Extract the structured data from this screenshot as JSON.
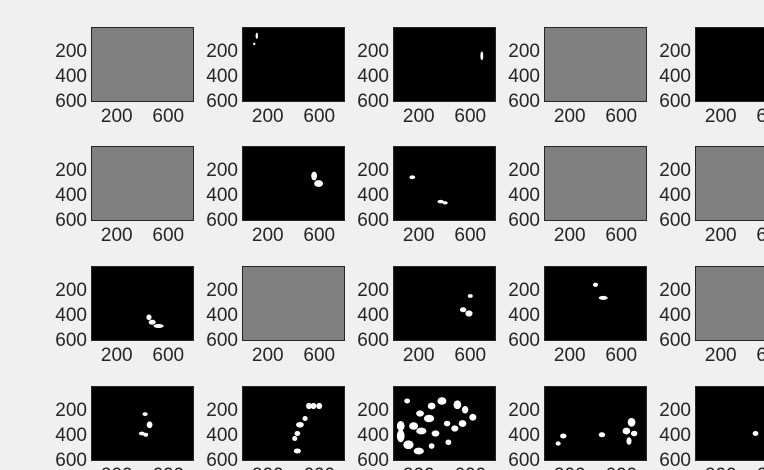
{
  "figure": {
    "background": "#f0f0f0",
    "tick_color": "#262626",
    "image_border_color": "#262626"
  },
  "chart_data": {
    "type": "image-grid",
    "grid": {
      "rows": 4,
      "cols": 5,
      "clipped": "right column and bottom row partially visible"
    },
    "image_size": {
      "width": 800,
      "height": 600
    },
    "xlim": [
      0,
      800
    ],
    "ylim": [
      0,
      600
    ],
    "y_reversed": true,
    "x_ticks": [
      200,
      600
    ],
    "y_ticks": [
      200,
      400,
      600
    ],
    "x_tick_labels": [
      "200",
      "600"
    ],
    "y_tick_labels": [
      "200",
      "400",
      "600"
    ],
    "gray_color": "#808080",
    "blob_color": "#ffffff",
    "panels": [
      {
        "row": 0,
        "col": 0,
        "fill": "gray",
        "blobs": []
      },
      {
        "row": 0,
        "col": 1,
        "fill": "black",
        "blobs": [
          {
            "x": 115,
            "y": 70,
            "w": 18,
            "h": 50
          },
          {
            "x": 95,
            "y": 135,
            "w": 10,
            "h": 18
          }
        ]
      },
      {
        "row": 0,
        "col": 2,
        "fill": "black",
        "blobs": [
          {
            "x": 690,
            "y": 230,
            "w": 22,
            "h": 70
          }
        ]
      },
      {
        "row": 0,
        "col": 3,
        "fill": "gray",
        "blobs": []
      },
      {
        "row": 0,
        "col": 4,
        "fill": "black",
        "blobs": []
      },
      {
        "row": 1,
        "col": 0,
        "fill": "gray",
        "blobs": []
      },
      {
        "row": 1,
        "col": 1,
        "fill": "black",
        "blobs": [
          {
            "x": 560,
            "y": 240,
            "w": 45,
            "h": 70
          },
          {
            "x": 595,
            "y": 300,
            "w": 70,
            "h": 55
          }
        ]
      },
      {
        "row": 1,
        "col": 2,
        "fill": "black",
        "blobs": [
          {
            "x": 150,
            "y": 250,
            "w": 45,
            "h": 30
          },
          {
            "x": 370,
            "y": 445,
            "w": 50,
            "h": 28
          },
          {
            "x": 405,
            "y": 455,
            "w": 40,
            "h": 26
          }
        ]
      },
      {
        "row": 1,
        "col": 3,
        "fill": "gray",
        "blobs": []
      },
      {
        "row": 1,
        "col": 4,
        "fill": "gray",
        "blobs": []
      },
      {
        "row": 2,
        "col": 0,
        "fill": "black",
        "blobs": [
          {
            "x": 450,
            "y": 410,
            "w": 40,
            "h": 45
          },
          {
            "x": 475,
            "y": 450,
            "w": 55,
            "h": 40
          },
          {
            "x": 525,
            "y": 480,
            "w": 80,
            "h": 32
          }
        ]
      },
      {
        "row": 2,
        "col": 1,
        "fill": "gray",
        "blobs": []
      },
      {
        "row": 2,
        "col": 2,
        "fill": "black",
        "blobs": [
          {
            "x": 600,
            "y": 240,
            "w": 40,
            "h": 30
          },
          {
            "x": 545,
            "y": 350,
            "w": 50,
            "h": 40
          },
          {
            "x": 590,
            "y": 380,
            "w": 55,
            "h": 50
          }
        ]
      },
      {
        "row": 2,
        "col": 3,
        "fill": "black",
        "blobs": [
          {
            "x": 400,
            "y": 150,
            "w": 40,
            "h": 35
          },
          {
            "x": 460,
            "y": 255,
            "w": 70,
            "h": 32
          }
        ]
      },
      {
        "row": 2,
        "col": 4,
        "fill": "gray",
        "blobs": []
      },
      {
        "row": 3,
        "col": 0,
        "fill": "black",
        "blobs": [
          {
            "x": 420,
            "y": 225,
            "w": 40,
            "h": 30
          },
          {
            "x": 455,
            "y": 310,
            "w": 45,
            "h": 55
          },
          {
            "x": 395,
            "y": 380,
            "w": 45,
            "h": 30
          },
          {
            "x": 425,
            "y": 390,
            "w": 40,
            "h": 32
          }
        ]
      },
      {
        "row": 3,
        "col": 1,
        "fill": "black",
        "blobs": [
          {
            "x": 520,
            "y": 160,
            "w": 45,
            "h": 50
          },
          {
            "x": 555,
            "y": 160,
            "w": 45,
            "h": 50
          },
          {
            "x": 600,
            "y": 160,
            "w": 45,
            "h": 50
          },
          {
            "x": 490,
            "y": 260,
            "w": 40,
            "h": 40
          },
          {
            "x": 450,
            "y": 310,
            "w": 60,
            "h": 45
          },
          {
            "x": 430,
            "y": 380,
            "w": 45,
            "h": 40
          },
          {
            "x": 410,
            "y": 420,
            "w": 40,
            "h": 40
          },
          {
            "x": 430,
            "y": 520,
            "w": 55,
            "h": 40
          }
        ]
      },
      {
        "row": 3,
        "col": 2,
        "fill": "black",
        "blobs": [
          {
            "x": 110,
            "y": 120,
            "w": 45,
            "h": 40
          },
          {
            "x": 210,
            "y": 220,
            "w": 60,
            "h": 50
          },
          {
            "x": 300,
            "y": 160,
            "w": 60,
            "h": 55
          },
          {
            "x": 380,
            "y": 120,
            "w": 70,
            "h": 60
          },
          {
            "x": 500,
            "y": 150,
            "w": 60,
            "h": 70
          },
          {
            "x": 560,
            "y": 190,
            "w": 50,
            "h": 60
          },
          {
            "x": 620,
            "y": 250,
            "w": 55,
            "h": 55
          },
          {
            "x": 280,
            "y": 260,
            "w": 80,
            "h": 60
          },
          {
            "x": 60,
            "y": 320,
            "w": 60,
            "h": 80
          },
          {
            "x": 60,
            "y": 400,
            "w": 60,
            "h": 100
          },
          {
            "x": 120,
            "y": 470,
            "w": 80,
            "h": 70
          },
          {
            "x": 200,
            "y": 520,
            "w": 80,
            "h": 55
          },
          {
            "x": 160,
            "y": 320,
            "w": 70,
            "h": 60
          },
          {
            "x": 220,
            "y": 360,
            "w": 80,
            "h": 55
          },
          {
            "x": 330,
            "y": 380,
            "w": 60,
            "h": 50
          },
          {
            "x": 420,
            "y": 300,
            "w": 50,
            "h": 45
          },
          {
            "x": 480,
            "y": 340,
            "w": 55,
            "h": 50
          },
          {
            "x": 540,
            "y": 300,
            "w": 60,
            "h": 55
          },
          {
            "x": 430,
            "y": 450,
            "w": 45,
            "h": 45
          },
          {
            "x": 300,
            "y": 480,
            "w": 45,
            "h": 45
          }
        ]
      },
      {
        "row": 3,
        "col": 3,
        "fill": "black",
        "blobs": [
          {
            "x": 680,
            "y": 290,
            "w": 60,
            "h": 70
          },
          {
            "x": 640,
            "y": 360,
            "w": 60,
            "h": 55
          },
          {
            "x": 700,
            "y": 380,
            "w": 50,
            "h": 45
          },
          {
            "x": 660,
            "y": 440,
            "w": 40,
            "h": 60
          },
          {
            "x": 450,
            "y": 390,
            "w": 50,
            "h": 40
          },
          {
            "x": 150,
            "y": 400,
            "w": 50,
            "h": 40
          },
          {
            "x": 110,
            "y": 460,
            "w": 40,
            "h": 35
          }
        ]
      },
      {
        "row": 3,
        "col": 4,
        "fill": "black",
        "blobs": [
          {
            "x": 470,
            "y": 380,
            "w": 45,
            "h": 40
          }
        ]
      }
    ]
  }
}
